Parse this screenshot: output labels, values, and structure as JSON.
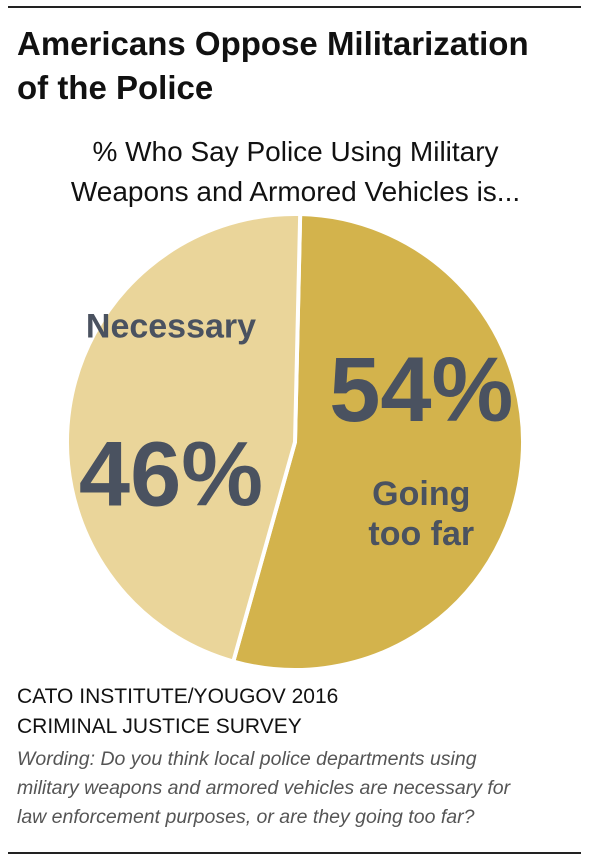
{
  "header": {
    "title_line1": "Americans Oppose Militarization",
    "title_line2": "of the Police",
    "subtitle_line1": "% Who Say Police Using Military",
    "subtitle_line2": "Weapons and Armored Vehicles is..."
  },
  "chart_data": {
    "type": "pie",
    "title": "Americans Oppose Militarization of the Police",
    "subtitle": "% Who Say Police Using Military Weapons and Armored Vehicles is...",
    "slices": [
      {
        "label": "Going too far",
        "label_lines": [
          "Going",
          "too far"
        ],
        "value": 54,
        "value_label": "54%",
        "color": "#d3b34c"
      },
      {
        "label": "Necessary",
        "label_lines": [
          "Necessary"
        ],
        "value": 46,
        "value_label": "46%",
        "color": "#ead59a"
      }
    ],
    "label_color": "#4a5260",
    "start_angle_deg": 0,
    "direction": "clockwise"
  },
  "footer": {
    "source_line1": "CATO INSTITUTE/YOUGOV 2016",
    "source_line2": "CRIMINAL JUSTICE SURVEY",
    "wording_line1": "Wording: Do you think local police departments using",
    "wording_line2": "military weapons and armored vehicles are necessary for",
    "wording_line3": "law enforcement purposes, or are they going too far?"
  }
}
